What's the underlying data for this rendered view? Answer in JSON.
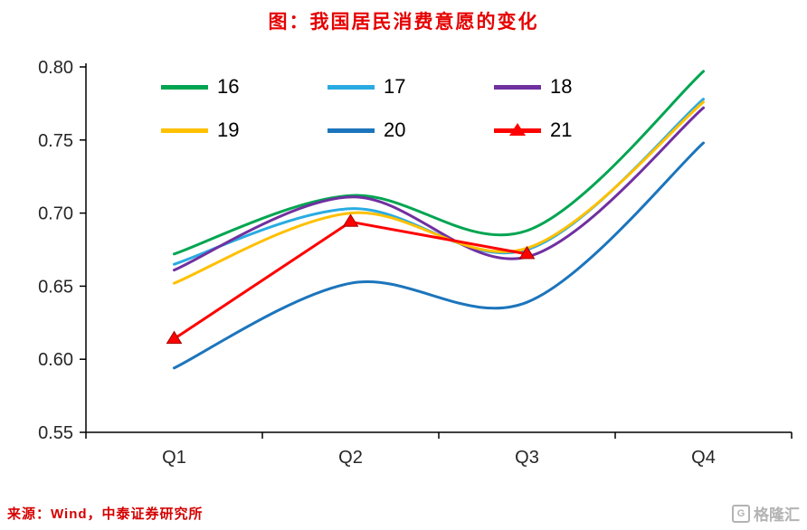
{
  "title": "图：我国居民消费意愿的变化",
  "source": "来源：Wind，中泰证券研究所",
  "watermark": {
    "text": "格隆汇",
    "icon_letter": "G"
  },
  "colors": {
    "title": "#e60000",
    "source": "#d40000",
    "watermark": "#b3b3b3",
    "axis": "#000000",
    "tick_label": "#262626"
  },
  "chart_data": {
    "type": "line",
    "title": "图：我国居民消费意愿的变化",
    "categories": [
      "Q1",
      "Q2",
      "Q3",
      "Q4"
    ],
    "series": [
      {
        "name": "16",
        "color": "#00a551",
        "smooth": true,
        "marker": "none",
        "values": [
          0.672,
          0.712,
          0.688,
          0.797
        ]
      },
      {
        "name": "17",
        "color": "#29abe2",
        "smooth": true,
        "marker": "none",
        "values": [
          0.665,
          0.703,
          0.675,
          0.778
        ]
      },
      {
        "name": "18",
        "color": "#7030a0",
        "smooth": true,
        "marker": "none",
        "values": [
          0.661,
          0.711,
          0.67,
          0.772
        ]
      },
      {
        "name": "19",
        "color": "#ffc000",
        "smooth": true,
        "marker": "none",
        "values": [
          0.652,
          0.7,
          0.676,
          0.776
        ]
      },
      {
        "name": "20",
        "color": "#1c75bc",
        "smooth": true,
        "marker": "none",
        "values": [
          0.594,
          0.652,
          0.639,
          0.748
        ]
      },
      {
        "name": "21",
        "color": "#fe0000",
        "smooth": false,
        "marker": "triangle",
        "values": [
          0.614,
          0.694,
          0.672,
          null
        ]
      }
    ],
    "xlabel": "",
    "ylabel": "",
    "ylim": [
      0.55,
      0.8
    ],
    "yticks": [
      0.55,
      0.6,
      0.65,
      0.7,
      0.75,
      0.8
    ],
    "grid": false,
    "legend_position": "top"
  }
}
